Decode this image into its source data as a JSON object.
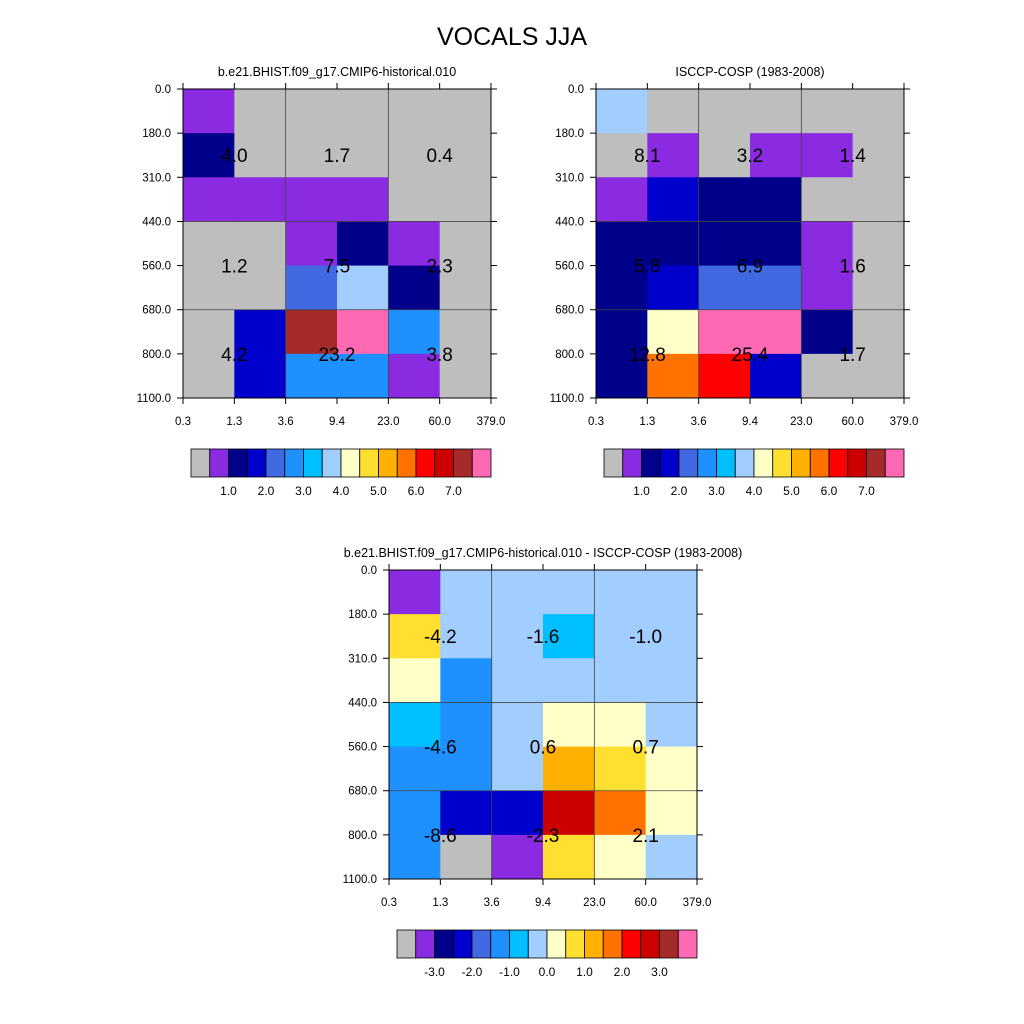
{
  "title": "VOCALS JJA",
  "x_ticks": [
    "0.3",
    "1.3",
    "3.6",
    "9.4",
    "23.0",
    "60.0",
    "379.0"
  ],
  "y_ticks": [
    "0.0",
    "180.0",
    "310.0",
    "440.0",
    "560.0",
    "680.0",
    "800.0",
    "1100.0"
  ],
  "palette": {
    "c0": "#bebebe",
    "c1": "#8a2be2",
    "c2": "#00008b",
    "c3": "#0000cd",
    "c4": "#4169e1",
    "c5": "#1e90ff",
    "c6": "#00bfff",
    "c7": "#a2cdff",
    "c8": "#ffffc8",
    "c9": "#ffe030",
    "c10": "#ffb000",
    "c11": "#ff7200",
    "c12": "#ff0000",
    "c13": "#cd0000",
    "c14": "#a52a2a",
    "c15": "#ff69b4"
  },
  "colorbars": {
    "absolute": {
      "colors": [
        "c0",
        "c1",
        "c2",
        "c3",
        "c4",
        "c5",
        "c6",
        "c7",
        "c8",
        "c9",
        "c10",
        "c11",
        "c12",
        "c13",
        "c14",
        "c15"
      ],
      "labels": [
        "1.0",
        "2.0",
        "3.0",
        "4.0",
        "5.0",
        "6.0",
        "7.0"
      ],
      "label_boundaries": [
        2,
        4,
        6,
        8,
        10,
        12,
        14
      ]
    },
    "difference": {
      "colors": [
        "c0",
        "c1",
        "c2",
        "c3",
        "c4",
        "c5",
        "c6",
        "c7",
        "c8",
        "c9",
        "c10",
        "c11",
        "c12",
        "c13",
        "c14",
        "c15"
      ],
      "labels": [
        "-3.0",
        "-2.0",
        "-1.0",
        "0.0",
        "1.0",
        "2.0",
        "3.0"
      ],
      "label_boundaries": [
        2,
        4,
        6,
        8,
        10,
        12,
        14
      ]
    }
  },
  "chart_data": [
    {
      "type": "heatmap",
      "title": "b.e21.BHIST.f09_g17.CMIP6-historical.010",
      "xlabel": "",
      "ylabel": "",
      "x_edges": [
        "0.3",
        "1.3",
        "3.6",
        "9.4",
        "23.0",
        "60.0",
        "379.0"
      ],
      "y_edges": [
        "0.0",
        "180.0",
        "310.0",
        "440.0",
        "560.0",
        "680.0",
        "800.0",
        "1100.0"
      ],
      "cells_color_index": [
        [
          1,
          0,
          0,
          0,
          0,
          0
        ],
        [
          2,
          0,
          0,
          0,
          0,
          0
        ],
        [
          1,
          1,
          1,
          1,
          0,
          0
        ],
        [
          0,
          0,
          1,
          2,
          1,
          0
        ],
        [
          0,
          0,
          4,
          7,
          2,
          0
        ],
        [
          0,
          3,
          14,
          15,
          5,
          0
        ],
        [
          0,
          3,
          5,
          5,
          1,
          0
        ]
      ],
      "box_values": [
        [
          "4.0",
          "1.7",
          "0.4"
        ],
        [
          "1.2",
          "7.5",
          "2.3"
        ],
        [
          "4.2",
          "23.2",
          "3.8"
        ]
      ],
      "colorbar": "absolute"
    },
    {
      "type": "heatmap",
      "title": "ISCCP-COSP (1983-2008)",
      "xlabel": "",
      "ylabel": "",
      "x_edges": [
        "0.3",
        "1.3",
        "3.6",
        "9.4",
        "23.0",
        "60.0",
        "379.0"
      ],
      "y_edges": [
        "0.0",
        "180.0",
        "310.0",
        "440.0",
        "560.0",
        "680.0",
        "800.0",
        "1100.0"
      ],
      "cells_color_index": [
        [
          7,
          0,
          0,
          0,
          0,
          0
        ],
        [
          0,
          1,
          0,
          1,
          1,
          0
        ],
        [
          1,
          3,
          2,
          2,
          0,
          0
        ],
        [
          2,
          2,
          2,
          2,
          1,
          0
        ],
        [
          2,
          3,
          4,
          4,
          1,
          0
        ],
        [
          2,
          8,
          15,
          15,
          2,
          0
        ],
        [
          2,
          11,
          12,
          3,
          0,
          0
        ]
      ],
      "box_values": [
        [
          "8.1",
          "3.2",
          "1.4"
        ],
        [
          "5.8",
          "6.9",
          "1.6"
        ],
        [
          "12.8",
          "25.4",
          "1.7"
        ]
      ],
      "colorbar": "absolute"
    },
    {
      "type": "heatmap",
      "title": "b.e21.BHIST.f09_g17.CMIP6-historical.010 - ISCCP-COSP (1983-2008)",
      "xlabel": "",
      "ylabel": "",
      "x_edges": [
        "0.3",
        "1.3",
        "3.6",
        "9.4",
        "23.0",
        "60.0",
        "379.0"
      ],
      "y_edges": [
        "0.0",
        "180.0",
        "310.0",
        "440.0",
        "560.0",
        "680.0",
        "800.0",
        "1100.0"
      ],
      "cells_color_index": [
        [
          1,
          7,
          7,
          7,
          7,
          7
        ],
        [
          9,
          7,
          7,
          6,
          7,
          7
        ],
        [
          8,
          5,
          7,
          7,
          7,
          7
        ],
        [
          6,
          5,
          7,
          8,
          8,
          7
        ],
        [
          5,
          5,
          7,
          10,
          9,
          8
        ],
        [
          5,
          3,
          3,
          13,
          11,
          8
        ],
        [
          5,
          0,
          1,
          9,
          8,
          7
        ]
      ],
      "box_values": [
        [
          "-4.2",
          "-1.6",
          "-1.0"
        ],
        [
          "-4.6",
          "0.6",
          "0.7"
        ],
        [
          "-8.6",
          "-2.3",
          "2.1"
        ]
      ],
      "colorbar": "difference"
    }
  ]
}
